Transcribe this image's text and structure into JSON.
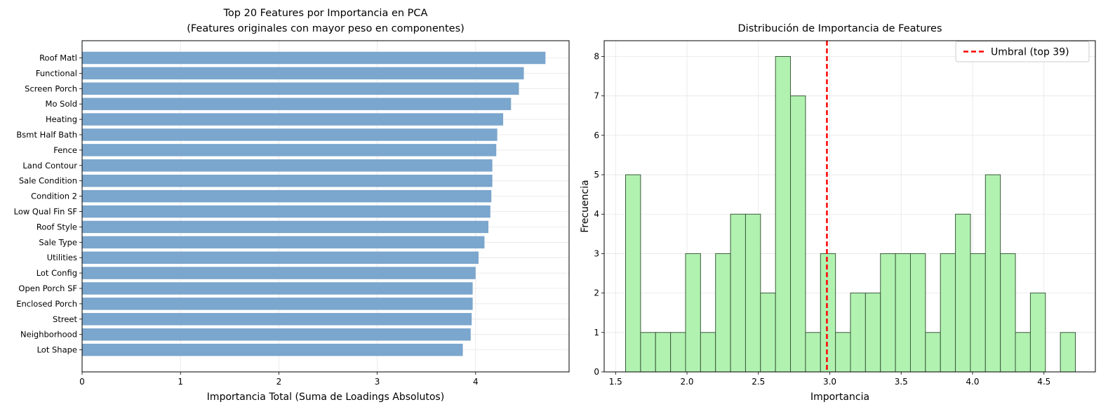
{
  "chart_data": [
    {
      "type": "bar",
      "orientation": "horizontal",
      "title_line1": "Top 20 Features por Importancia en PCA",
      "title_line2": "(Features originales con mayor peso en componentes)",
      "xlabel": "Importancia Total (Suma de Loadings Absolutos)",
      "ylabel": "",
      "xlim": [
        0,
        4.95
      ],
      "xticks": [
        "0",
        "1",
        "2",
        "3",
        "4"
      ],
      "grid": true,
      "bar_color": "#7ba6cd",
      "categories": [
        "Roof Matl",
        "Functional",
        "Screen Porch",
        "Mo Sold",
        "Heating",
        "Bsmt Half Bath",
        "Fence",
        "Land Contour",
        "Sale Condition",
        "Condition 2",
        "Low Qual Fin SF",
        "Roof Style",
        "Sale Type",
        "Utilities",
        "Lot Config",
        "Open Porch SF",
        "Enclosed Porch",
        "Street",
        "Neighborhood",
        "Lot Shape"
      ],
      "values": [
        4.71,
        4.49,
        4.44,
        4.36,
        4.28,
        4.22,
        4.21,
        4.17,
        4.17,
        4.16,
        4.15,
        4.13,
        4.09,
        4.03,
        4.0,
        3.97,
        3.97,
        3.96,
        3.95,
        3.87
      ]
    },
    {
      "type": "histogram",
      "title": "Distribución de Importancia de Features",
      "xlabel": "Importancia",
      "ylabel": "Frecuencia",
      "xlim": [
        1.42,
        4.86
      ],
      "ylim": [
        0,
        8.4
      ],
      "xticks": [
        "1.5",
        "2.0",
        "2.5",
        "3.0",
        "3.5",
        "4.0",
        "4.5"
      ],
      "yticks": [
        "0",
        "1",
        "2",
        "3",
        "4",
        "5",
        "6",
        "7",
        "8"
      ],
      "grid": true,
      "bar_color": "#b1f2b1",
      "edge_color": "#3a5a3a",
      "bin_start": 1.57,
      "bin_width": 0.105,
      "counts": [
        5,
        1,
        1,
        1,
        3,
        1,
        3,
        4,
        4,
        2,
        8,
        7,
        1,
        3,
        1,
        2,
        2,
        3,
        3,
        3,
        1,
        3,
        4,
        3,
        5,
        3,
        1,
        2,
        0,
        1
      ],
      "threshold": 2.98,
      "threshold_color": "#ff0000",
      "legend_label": "Umbral (top 39)",
      "legend_position": "top-right"
    }
  ]
}
